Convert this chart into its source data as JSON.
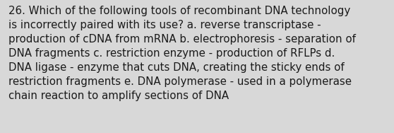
{
  "text": "26. Which of the following tools of recombinant DNA technology\nis incorrectly paired with its use? a. reverse transcriptase -\nproduction of cDNA from mRNA b. electrophoresis - separation of\nDNA fragments c. restriction enzyme - production of RFLPs d.\nDNA ligase - enzyme that cuts DNA, creating the sticky ends of\nrestriction fragments e. DNA polymerase - used in a polymerase\nchain reaction to amplify sections of DNA",
  "background_color": "#d8d8d8",
  "text_color": "#1a1a1a",
  "font_size": 10.8,
  "fig_width": 5.58,
  "fig_height": 1.88,
  "dpi": 100
}
